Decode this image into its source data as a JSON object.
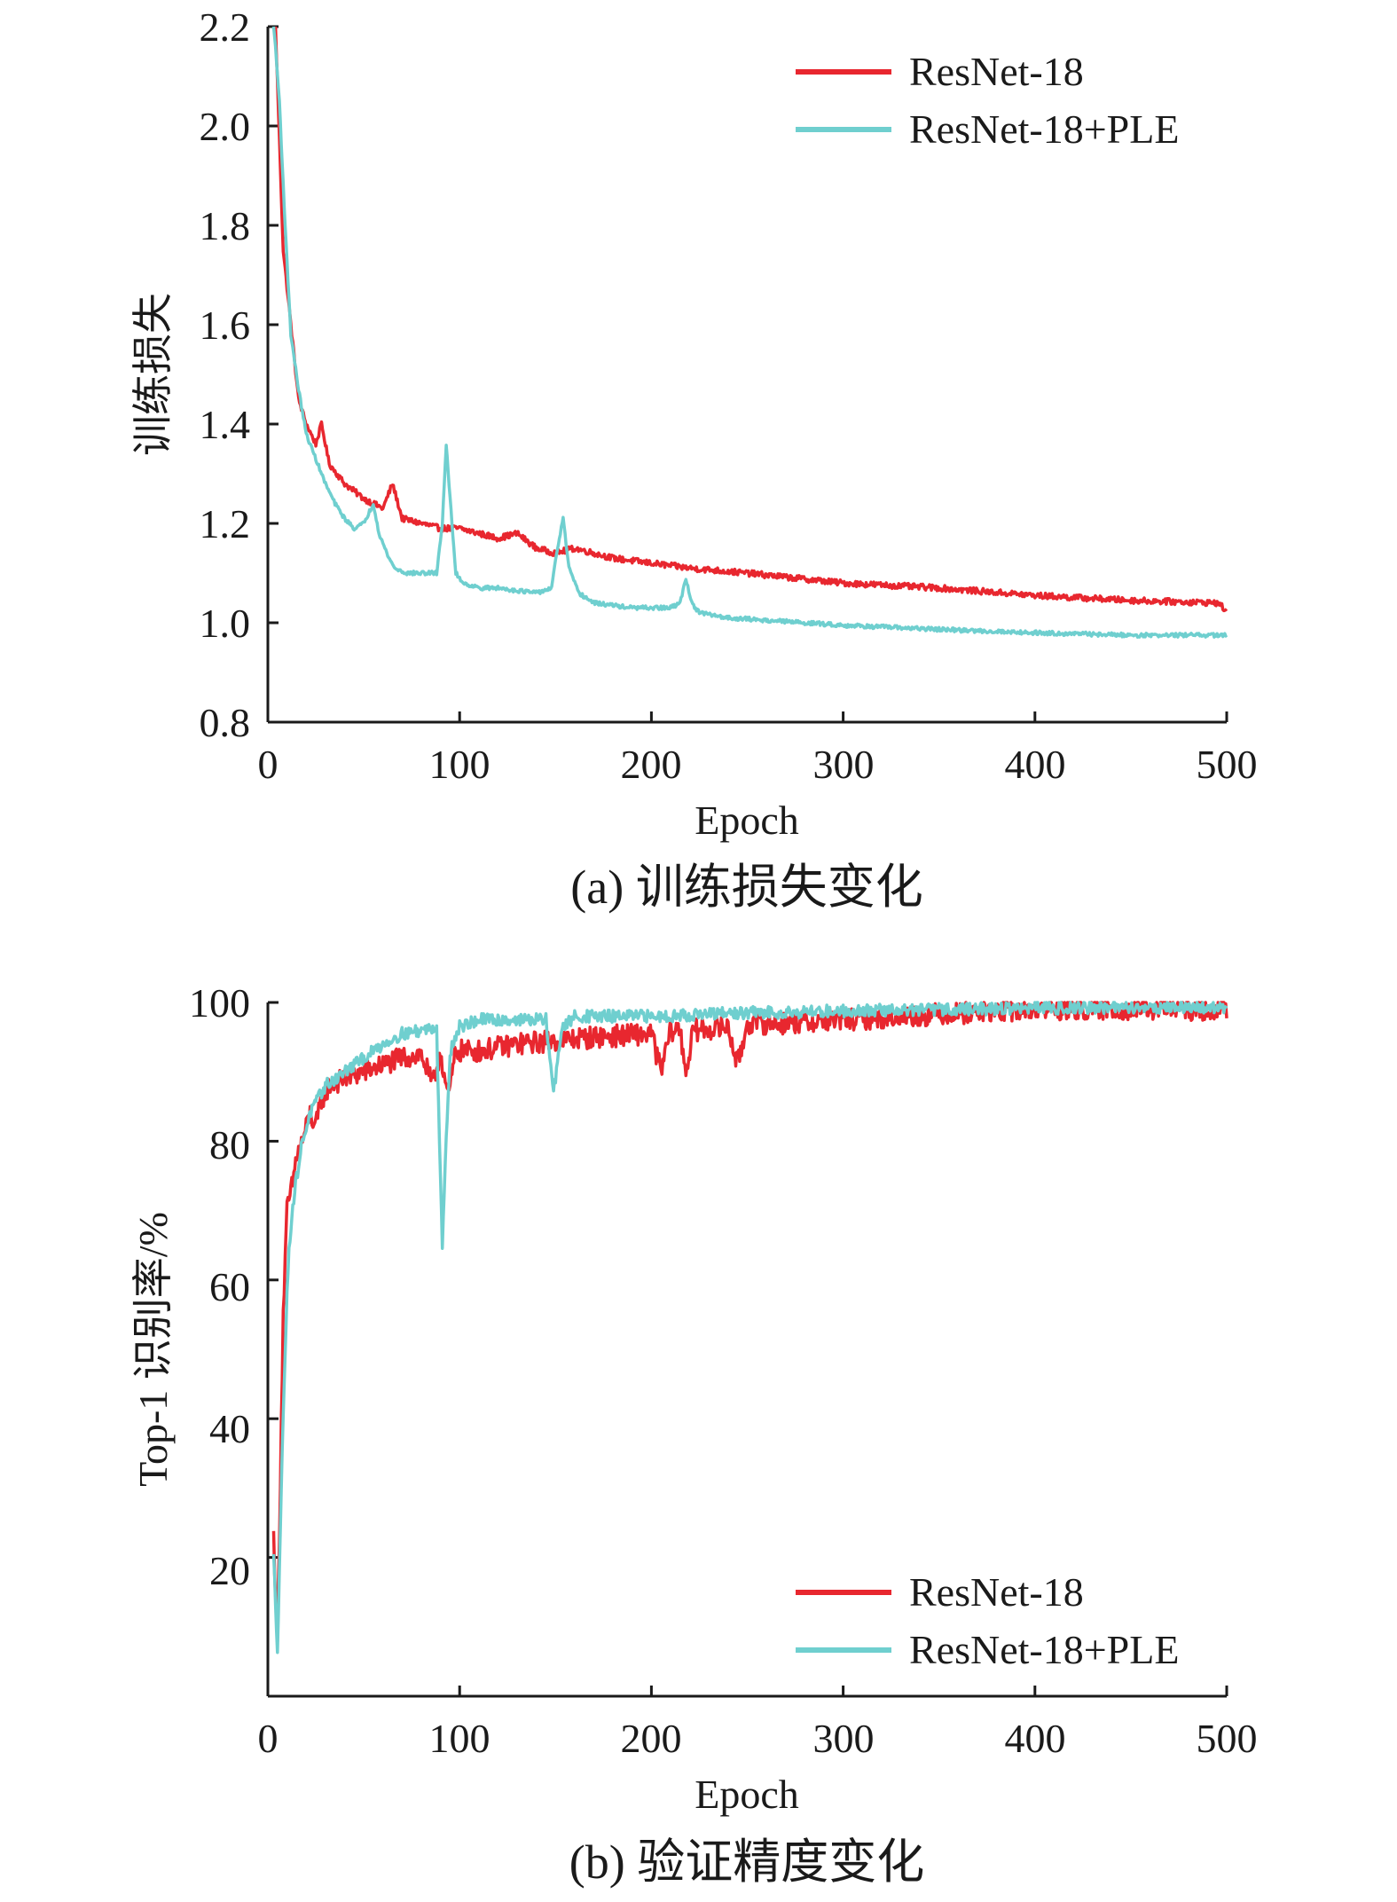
{
  "chart_data": [
    {
      "id": "panel-a",
      "type": "line",
      "title": "",
      "caption": "(a) 训练损失变化",
      "xlabel": "Epoch",
      "ylabel": "训练损失",
      "xlim": [
        0,
        500
      ],
      "ylim": [
        0.8,
        2.2
      ],
      "xticks": [
        "0",
        "100",
        "200",
        "300",
        "400",
        "500"
      ],
      "yticks": [
        "0.8",
        "1.0",
        "1.2",
        "1.4",
        "1.6",
        "1.8",
        "2.0",
        "2.2"
      ],
      "legend_position": "top-right",
      "grid": false,
      "series": [
        {
          "name": "ResNet-18",
          "color": "#e8272f",
          "noise": 0.006,
          "points": [
            [
              4,
              2.2
            ],
            [
              8,
              1.75
            ],
            [
              12,
              1.6
            ],
            [
              16,
              1.45
            ],
            [
              20,
              1.4
            ],
            [
              25,
              1.36
            ],
            [
              28,
              1.4
            ],
            [
              32,
              1.32
            ],
            [
              40,
              1.28
            ],
            [
              50,
              1.25
            ],
            [
              60,
              1.23
            ],
            [
              65,
              1.28
            ],
            [
              70,
              1.21
            ],
            [
              80,
              1.2
            ],
            [
              90,
              1.19
            ],
            [
              100,
              1.19
            ],
            [
              120,
              1.17
            ],
            [
              130,
              1.18
            ],
            [
              140,
              1.15
            ],
            [
              150,
              1.14
            ],
            [
              160,
              1.15
            ],
            [
              180,
              1.13
            ],
            [
              200,
              1.12
            ],
            [
              220,
              1.11
            ],
            [
              250,
              1.1
            ],
            [
              300,
              1.08
            ],
            [
              350,
              1.07
            ],
            [
              400,
              1.055
            ],
            [
              450,
              1.045
            ],
            [
              495,
              1.04
            ],
            [
              500,
              1.025
            ]
          ]
        },
        {
          "name": "ResNet-18+PLE",
          "color": "#6fcfcf",
          "noise": 0.004,
          "points": [
            [
              3,
              2.21
            ],
            [
              6,
              2.05
            ],
            [
              9,
              1.8
            ],
            [
              12,
              1.58
            ],
            [
              16,
              1.47
            ],
            [
              20,
              1.38
            ],
            [
              25,
              1.33
            ],
            [
              30,
              1.28
            ],
            [
              35,
              1.24
            ],
            [
              40,
              1.21
            ],
            [
              45,
              1.19
            ],
            [
              50,
              1.2
            ],
            [
              55,
              1.24
            ],
            [
              58,
              1.18
            ],
            [
              62,
              1.14
            ],
            [
              66,
              1.11
            ],
            [
              72,
              1.1
            ],
            [
              80,
              1.1
            ],
            [
              88,
              1.1
            ],
            [
              91,
              1.2
            ],
            [
              93,
              1.36
            ],
            [
              95,
              1.25
            ],
            [
              98,
              1.1
            ],
            [
              102,
              1.08
            ],
            [
              110,
              1.07
            ],
            [
              120,
              1.07
            ],
            [
              130,
              1.065
            ],
            [
              140,
              1.06
            ],
            [
              148,
              1.07
            ],
            [
              151,
              1.15
            ],
            [
              154,
              1.21
            ],
            [
              157,
              1.11
            ],
            [
              162,
              1.06
            ],
            [
              170,
              1.04
            ],
            [
              180,
              1.035
            ],
            [
              190,
              1.03
            ],
            [
              200,
              1.03
            ],
            [
              210,
              1.03
            ],
            [
              215,
              1.04
            ],
            [
              218,
              1.09
            ],
            [
              221,
              1.04
            ],
            [
              225,
              1.02
            ],
            [
              240,
              1.01
            ],
            [
              260,
              1.005
            ],
            [
              280,
              1.0
            ],
            [
              300,
              0.995
            ],
            [
              330,
              0.99
            ],
            [
              360,
              0.985
            ],
            [
              400,
              0.98
            ],
            [
              450,
              0.975
            ],
            [
              500,
              0.975
            ]
          ]
        }
      ]
    },
    {
      "id": "panel-b",
      "type": "line",
      "title": "",
      "caption": "(b) 验证精度变化",
      "xlabel": "Epoch",
      "ylabel": "Top-1 识别率/%",
      "xlim": [
        0,
        500
      ],
      "ylim": [
        0,
        100
      ],
      "xticks": [
        "0",
        "100",
        "200",
        "300",
        "400",
        "500"
      ],
      "yticks": [
        "20",
        "40",
        "60",
        "80",
        "100"
      ],
      "legend_position": "bottom-right",
      "grid": false,
      "series": [
        {
          "name": "ResNet-18",
          "color": "#e8272f",
          "noise": 1.6,
          "points": [
            [
              3,
              23
            ],
            [
              5,
              8
            ],
            [
              8,
              55
            ],
            [
              10,
              70
            ],
            [
              13,
              74
            ],
            [
              15,
              78
            ],
            [
              18,
              80
            ],
            [
              22,
              84
            ],
            [
              25,
              82
            ],
            [
              28,
              86
            ],
            [
              32,
              88
            ],
            [
              40,
              89
            ],
            [
              50,
              90
            ],
            [
              60,
              91
            ],
            [
              70,
              92
            ],
            [
              80,
              92.5
            ],
            [
              86,
              88
            ],
            [
              90,
              93
            ],
            [
              94,
              86
            ],
            [
              98,
              93
            ],
            [
              110,
              93
            ],
            [
              130,
              94
            ],
            [
              150,
              94.5
            ],
            [
              170,
              95
            ],
            [
              200,
              95.5
            ],
            [
              205,
              90
            ],
            [
              210,
              96
            ],
            [
              215,
              96
            ],
            [
              218,
              90
            ],
            [
              222,
              96
            ],
            [
              240,
              96.5
            ],
            [
              245,
              91
            ],
            [
              250,
              97
            ],
            [
              270,
              97
            ],
            [
              300,
              97.5
            ],
            [
              330,
              98
            ],
            [
              360,
              98.5
            ],
            [
              400,
              99
            ],
            [
              450,
              99
            ],
            [
              500,
              99
            ]
          ]
        },
        {
          "name": "ResNet-18+PLE",
          "color": "#6fcfcf",
          "noise": 0.9,
          "points": [
            [
              3,
              20
            ],
            [
              5,
              7
            ],
            [
              7,
              30
            ],
            [
              9,
              50
            ],
            [
              11,
              65
            ],
            [
              14,
              73
            ],
            [
              18,
              80
            ],
            [
              22,
              84
            ],
            [
              26,
              86
            ],
            [
              30,
              88
            ],
            [
              40,
              90
            ],
            [
              50,
              92
            ],
            [
              60,
              94
            ],
            [
              70,
              95.5
            ],
            [
              80,
              96
            ],
            [
              88,
              96.5
            ],
            [
              90,
              75
            ],
            [
              91,
              65
            ],
            [
              93,
              80
            ],
            [
              95,
              93
            ],
            [
              100,
              96.5
            ],
            [
              110,
              97.5
            ],
            [
              130,
              97.5
            ],
            [
              145,
              97.5
            ],
            [
              149,
              87
            ],
            [
              153,
              96
            ],
            [
              160,
              98
            ],
            [
              200,
              98
            ],
            [
              250,
              98.5
            ],
            [
              300,
              98.8
            ],
            [
              350,
              99
            ],
            [
              400,
              99.2
            ],
            [
              450,
              99.3
            ],
            [
              500,
              99.3
            ]
          ]
        }
      ]
    }
  ]
}
